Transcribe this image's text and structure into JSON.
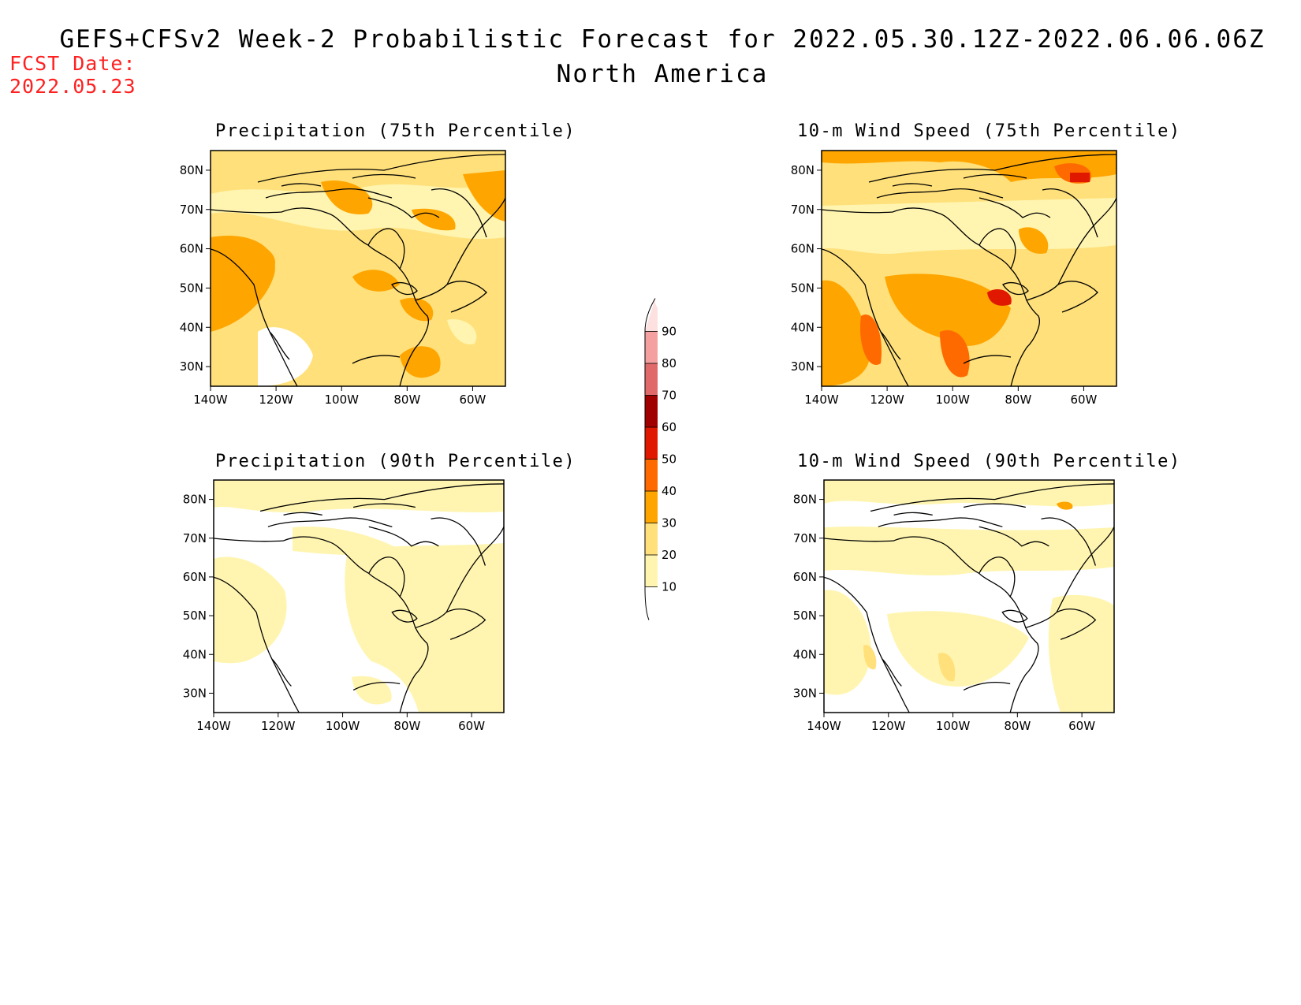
{
  "header": {
    "title": "GEFS+CFSv2 Week-2 Probabilistic Forecast for 2022.05.30.12Z-2022.06.06.06Z",
    "subtitle": "North America",
    "fcst_label": "FCST Date:",
    "fcst_date": "2022.05.23"
  },
  "panels": [
    {
      "id": "precip75",
      "title": "Precipitation (75th Percentile)"
    },
    {
      "id": "wind75",
      "title": "10-m Wind Speed (75th Percentile)"
    },
    {
      "id": "precip90",
      "title": "Precipitation (90th Percentile)"
    },
    {
      "id": "wind90",
      "title": "10-m Wind Speed (90th Percentile)"
    }
  ],
  "axes": {
    "lon_ticks": [
      "140W",
      "120W",
      "100W",
      "80W",
      "60W"
    ],
    "lat_ticks": [
      "80N",
      "70N",
      "60N",
      "50N",
      "40N",
      "30N"
    ],
    "lon_range": [
      -140,
      -50
    ],
    "lat_range": [
      25,
      85
    ]
  },
  "colorbar": {
    "levels": [
      10,
      20,
      30,
      40,
      50,
      60,
      70,
      80,
      90
    ],
    "labels": [
      "90",
      "80",
      "70",
      "60",
      "50",
      "40",
      "30",
      "20",
      "10"
    ],
    "colors": [
      "#ffffff",
      "#fff5b0",
      "#ffe07a",
      "#ffa500",
      "#ff6a00",
      "#e01800",
      "#a00000",
      "#e06a6a",
      "#f4a0a0",
      "#fde0e0"
    ]
  }
}
